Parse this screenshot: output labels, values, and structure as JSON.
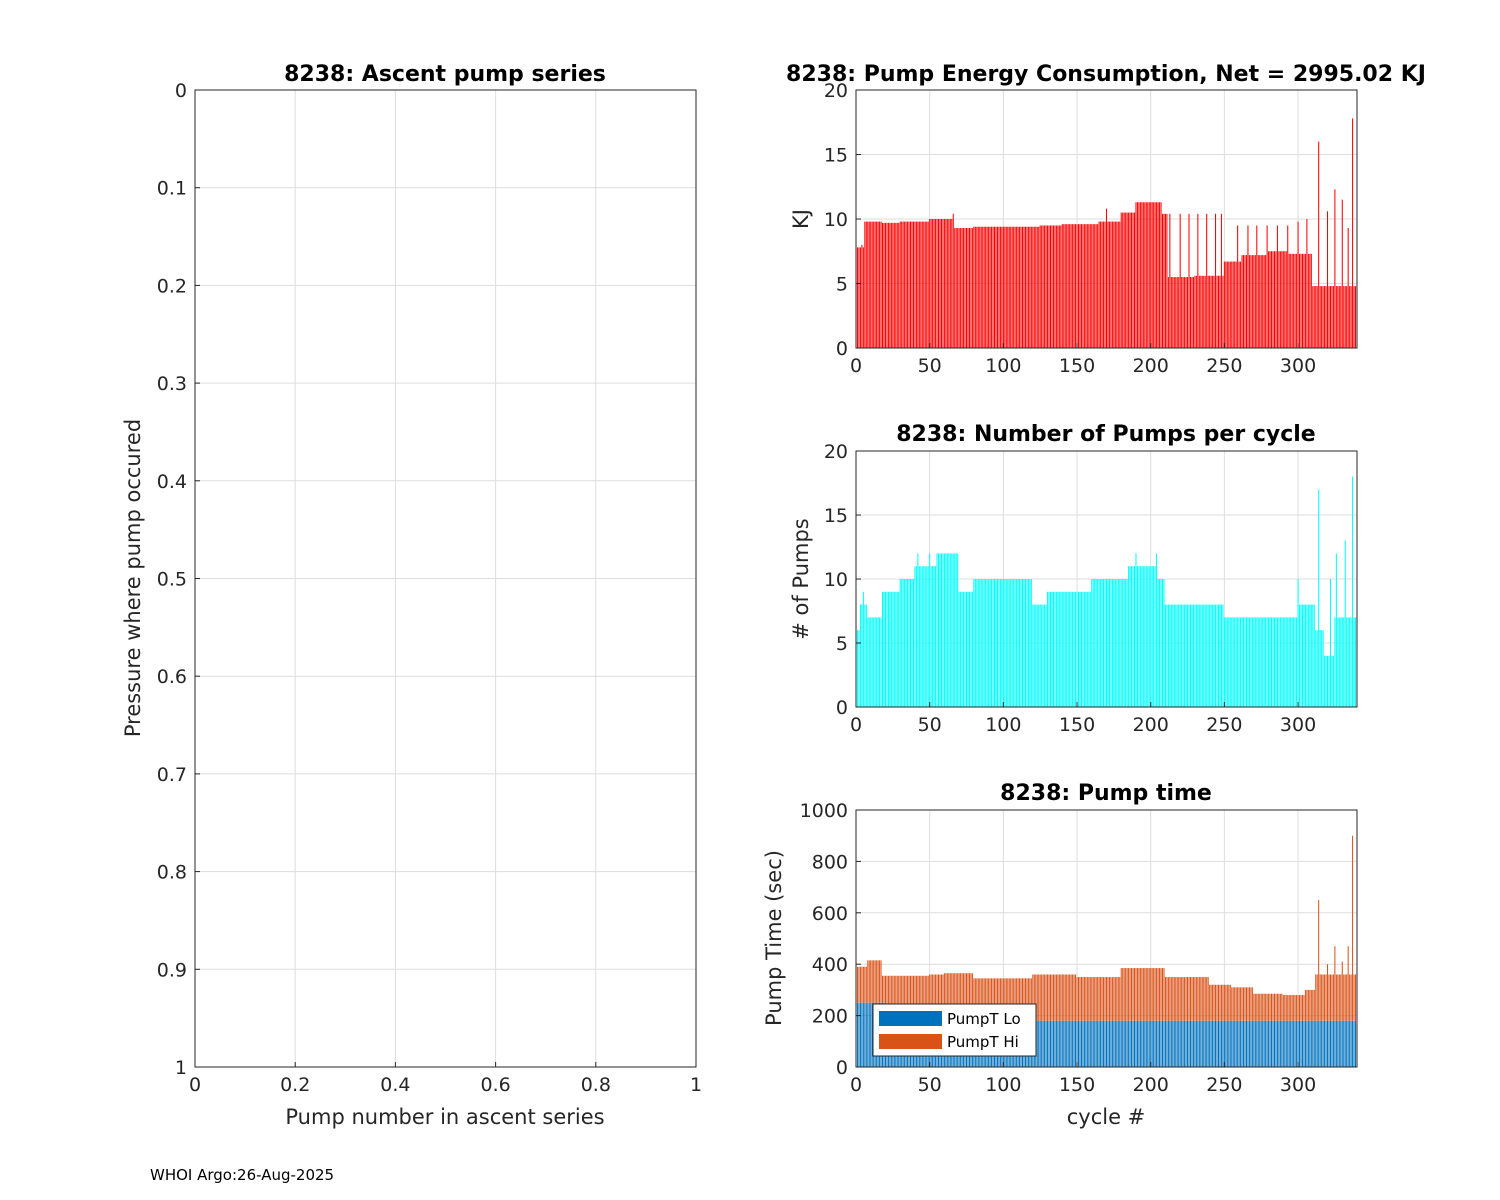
{
  "footer": "WHOI Argo:26-Aug-2025",
  "colors": {
    "energy": "#ff0000",
    "pumps": "#00ffff",
    "pumpLo": "#0072bd",
    "pumpHi": "#d95319",
    "grid": "#dddddd",
    "axis": "#262626"
  },
  "chart_data": [
    {
      "id": "ascent",
      "type": "scatter",
      "title": "8238: Ascent pump series",
      "xlabel": "Pump number in ascent series",
      "ylabel": "Pressure where pump occured",
      "xlim": [
        0,
        1
      ],
      "ylim": [
        0,
        1
      ],
      "y_reversed": true,
      "xticks": [
        "0",
        "0.2",
        "0.4",
        "0.6",
        "0.8",
        "1"
      ],
      "yticks": [
        "0",
        "0.1",
        "0.2",
        "0.3",
        "0.4",
        "0.5",
        "0.6",
        "0.7",
        "0.8",
        "0.9",
        "1"
      ],
      "series": []
    },
    {
      "id": "energy",
      "type": "bar",
      "title": "8238: Pump Energy Consumption,  Net = 2995.02 KJ",
      "xlabel": "",
      "ylabel": "KJ",
      "xlim": [
        0,
        340
      ],
      "ylim": [
        0,
        20
      ],
      "xticks": [
        "0",
        "50",
        "100",
        "150",
        "200",
        "250",
        "300"
      ],
      "yticks": [
        "0",
        "5",
        "10",
        "15",
        "20"
      ],
      "segments": [
        {
          "from": 0,
          "to": 1,
          "value": 2.3
        },
        {
          "from": 1,
          "to": 6,
          "value": 7.8
        },
        {
          "from": 6,
          "to": 18,
          "value": 9.8
        },
        {
          "from": 18,
          "to": 30,
          "value": 9.7
        },
        {
          "from": 30,
          "to": 50,
          "value": 9.8
        },
        {
          "from": 50,
          "to": 67,
          "value": 10.0
        },
        {
          "from": 67,
          "to": 80,
          "value": 9.3
        },
        {
          "from": 80,
          "to": 125,
          "value": 9.4
        },
        {
          "from": 125,
          "to": 140,
          "value": 9.5
        },
        {
          "from": 140,
          "to": 165,
          "value": 9.6
        },
        {
          "from": 165,
          "to": 180,
          "value": 9.8
        },
        {
          "from": 180,
          "to": 190,
          "value": 10.5
        },
        {
          "from": 190,
          "to": 208,
          "value": 11.3
        },
        {
          "from": 208,
          "to": 212,
          "value": 10.4
        },
        {
          "from": 212,
          "to": 230,
          "value": 5.5
        },
        {
          "from": 230,
          "to": 250,
          "value": 5.6
        },
        {
          "from": 250,
          "to": 262,
          "value": 6.7
        },
        {
          "from": 262,
          "to": 280,
          "value": 7.2
        },
        {
          "from": 280,
          "to": 293,
          "value": 7.5
        },
        {
          "from": 293,
          "to": 310,
          "value": 7.3
        },
        {
          "from": 310,
          "to": 340,
          "value": 4.8
        }
      ],
      "spikes": [
        {
          "x": 4,
          "value": 8.0
        },
        {
          "x": 66,
          "value": 10.4
        },
        {
          "x": 170,
          "value": 10.8
        },
        {
          "x": 213,
          "value": 10.4
        },
        {
          "x": 220,
          "value": 10.4
        },
        {
          "x": 226,
          "value": 10.4
        },
        {
          "x": 232,
          "value": 10.4
        },
        {
          "x": 238,
          "value": 10.4
        },
        {
          "x": 244,
          "value": 10.4
        },
        {
          "x": 248,
          "value": 10.4
        },
        {
          "x": 259,
          "value": 9.5
        },
        {
          "x": 266,
          "value": 9.5
        },
        {
          "x": 272,
          "value": 9.5
        },
        {
          "x": 279,
          "value": 9.5
        },
        {
          "x": 286,
          "value": 9.5
        },
        {
          "x": 293,
          "value": 9.5
        },
        {
          "x": 300,
          "value": 9.8
        },
        {
          "x": 306,
          "value": 10.0
        },
        {
          "x": 314,
          "value": 16.0
        },
        {
          "x": 320,
          "value": 10.6
        },
        {
          "x": 325,
          "value": 12.3
        },
        {
          "x": 330,
          "value": 11.5
        },
        {
          "x": 334,
          "value": 9.3
        },
        {
          "x": 337,
          "value": 17.8
        }
      ]
    },
    {
      "id": "pumps",
      "type": "bar",
      "title": "8238: Number of Pumps per cycle",
      "xlabel": "",
      "ylabel": "# of Pumps",
      "xlim": [
        0,
        340
      ],
      "ylim": [
        0,
        20
      ],
      "xticks": [
        "0",
        "50",
        "100",
        "150",
        "200",
        "250",
        "300"
      ],
      "yticks": [
        "0",
        "5",
        "10",
        "15",
        "20"
      ],
      "segments": [
        {
          "from": 0,
          "to": 3,
          "value": 6
        },
        {
          "from": 3,
          "to": 8,
          "value": 8
        },
        {
          "from": 8,
          "to": 18,
          "value": 7
        },
        {
          "from": 18,
          "to": 30,
          "value": 9
        },
        {
          "from": 30,
          "to": 40,
          "value": 10
        },
        {
          "from": 40,
          "to": 55,
          "value": 11
        },
        {
          "from": 55,
          "to": 70,
          "value": 12
        },
        {
          "from": 70,
          "to": 80,
          "value": 9
        },
        {
          "from": 80,
          "to": 120,
          "value": 10
        },
        {
          "from": 120,
          "to": 130,
          "value": 8
        },
        {
          "from": 130,
          "to": 160,
          "value": 9
        },
        {
          "from": 160,
          "to": 185,
          "value": 10
        },
        {
          "from": 185,
          "to": 205,
          "value": 11
        },
        {
          "from": 205,
          "to": 210,
          "value": 10
        },
        {
          "from": 210,
          "to": 250,
          "value": 8
        },
        {
          "from": 250,
          "to": 300,
          "value": 7
        },
        {
          "from": 300,
          "to": 312,
          "value": 8
        },
        {
          "from": 312,
          "to": 318,
          "value": 6
        },
        {
          "from": 318,
          "to": 325,
          "value": 4
        },
        {
          "from": 325,
          "to": 340,
          "value": 7
        }
      ],
      "spikes": [
        {
          "x": 5,
          "value": 9
        },
        {
          "x": 42,
          "value": 12
        },
        {
          "x": 50,
          "value": 12
        },
        {
          "x": 60,
          "value": 12
        },
        {
          "x": 66,
          "value": 12
        },
        {
          "x": 190,
          "value": 12
        },
        {
          "x": 204,
          "value": 12
        },
        {
          "x": 300,
          "value": 10
        },
        {
          "x": 314,
          "value": 17
        },
        {
          "x": 322,
          "value": 10
        },
        {
          "x": 326,
          "value": 12
        },
        {
          "x": 332,
          "value": 13
        },
        {
          "x": 337,
          "value": 18
        }
      ]
    },
    {
      "id": "pumptime",
      "type": "bar",
      "stacked": true,
      "title": "8238: Pump time",
      "xlabel": "cycle #",
      "ylabel": "Pump Time (sec)",
      "xlim": [
        0,
        340
      ],
      "ylim": [
        0,
        1000
      ],
      "xticks": [
        "0",
        "50",
        "100",
        "150",
        "200",
        "250",
        "300"
      ],
      "yticks": [
        "0",
        "200",
        "400",
        "600",
        "800",
        "1000"
      ],
      "legend": [
        "PumpT Lo",
        "PumpT Hi"
      ],
      "legend_location": "bottom-left",
      "lo_segments": [
        {
          "from": 0,
          "to": 20,
          "value": 250
        },
        {
          "from": 20,
          "to": 80,
          "value": 235
        },
        {
          "from": 80,
          "to": 120,
          "value": 220
        },
        {
          "from": 120,
          "to": 340,
          "value": 180
        }
      ],
      "total_segments": [
        {
          "from": 0,
          "to": 8,
          "value": 390
        },
        {
          "from": 8,
          "to": 18,
          "value": 415
        },
        {
          "from": 18,
          "to": 50,
          "value": 355
        },
        {
          "from": 50,
          "to": 60,
          "value": 360
        },
        {
          "from": 60,
          "to": 80,
          "value": 365
        },
        {
          "from": 80,
          "to": 120,
          "value": 345
        },
        {
          "from": 120,
          "to": 150,
          "value": 360
        },
        {
          "from": 150,
          "to": 180,
          "value": 350
        },
        {
          "from": 180,
          "to": 210,
          "value": 385
        },
        {
          "from": 210,
          "to": 240,
          "value": 350
        },
        {
          "from": 240,
          "to": 255,
          "value": 320
        },
        {
          "from": 255,
          "to": 270,
          "value": 310
        },
        {
          "from": 270,
          "to": 290,
          "value": 285
        },
        {
          "from": 290,
          "to": 305,
          "value": 280
        },
        {
          "from": 305,
          "to": 312,
          "value": 300
        },
        {
          "from": 312,
          "to": 340,
          "value": 360
        }
      ],
      "spikes": [
        {
          "x": 314,
          "value": 650
        },
        {
          "x": 320,
          "value": 400
        },
        {
          "x": 325,
          "value": 470
        },
        {
          "x": 330,
          "value": 410
        },
        {
          "x": 334,
          "value": 470
        },
        {
          "x": 337,
          "value": 900
        }
      ]
    }
  ]
}
